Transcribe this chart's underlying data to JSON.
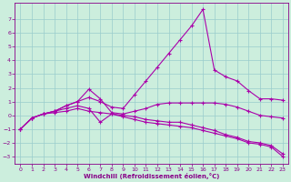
{
  "bg_color": "#cceedd",
  "line_color": "#aa00aa",
  "grid_color": "#99cccc",
  "xlabel": "Windchill (Refroidissement éolien,°C)",
  "xlabel_color": "#880088",
  "tick_color": "#880088",
  "xlim": [
    -0.5,
    23.5
  ],
  "ylim": [
    -3.5,
    8.2
  ],
  "yticks": [
    -3,
    -2,
    -1,
    0,
    1,
    2,
    3,
    4,
    5,
    6,
    7
  ],
  "xticks": [
    0,
    1,
    2,
    3,
    4,
    5,
    6,
    7,
    8,
    9,
    10,
    11,
    12,
    13,
    14,
    15,
    16,
    17,
    18,
    19,
    20,
    21,
    22,
    23
  ],
  "series": [
    {
      "x": [
        0,
        1,
        2,
        3,
        4,
        5,
        6,
        7,
        8,
        9,
        10,
        11,
        12,
        13,
        14,
        15,
        16,
        17,
        18,
        19,
        20,
        21,
        22,
        23
      ],
      "y": [
        -1.0,
        -0.2,
        0.1,
        0.3,
        0.7,
        1.0,
        1.3,
        1.0,
        0.6,
        0.5,
        1.5,
        2.5,
        3.5,
        4.5,
        5.5,
        6.5,
        7.7,
        3.3,
        2.8,
        2.5,
        1.8,
        1.2,
        1.2,
        1.1
      ]
    },
    {
      "x": [
        0,
        1,
        2,
        3,
        4,
        5,
        6,
        7,
        8,
        9,
        10,
        11,
        12,
        13,
        14,
        15,
        16,
        17,
        18,
        19,
        20,
        21,
        22,
        23
      ],
      "y": [
        -1.0,
        -0.2,
        0.1,
        0.3,
        0.7,
        1.0,
        1.9,
        1.2,
        0.2,
        0.1,
        0.3,
        0.5,
        0.8,
        0.9,
        0.9,
        0.9,
        0.9,
        0.9,
        0.8,
        0.6,
        0.3,
        0.0,
        -0.1,
        -0.2
      ]
    },
    {
      "x": [
        0,
        1,
        2,
        3,
        4,
        5,
        6,
        7,
        8,
        9,
        10,
        11,
        12,
        13,
        14,
        15,
        16,
        17,
        18,
        19,
        20,
        21,
        22,
        23
      ],
      "y": [
        -1.0,
        -0.2,
        0.1,
        0.3,
        0.5,
        0.7,
        0.5,
        -0.5,
        0.1,
        0.0,
        -0.1,
        -0.3,
        -0.4,
        -0.5,
        -0.5,
        -0.7,
        -0.9,
        -1.1,
        -1.4,
        -1.6,
        -1.9,
        -2.0,
        -2.2,
        -2.8
      ]
    },
    {
      "x": [
        0,
        1,
        2,
        3,
        4,
        5,
        6,
        7,
        8,
        9,
        10,
        11,
        12,
        13,
        14,
        15,
        16,
        17,
        18,
        19,
        20,
        21,
        22,
        23
      ],
      "y": [
        -1.0,
        -0.2,
        0.1,
        0.2,
        0.3,
        0.5,
        0.3,
        0.2,
        0.1,
        -0.1,
        -0.3,
        -0.5,
        -0.6,
        -0.7,
        -0.8,
        -0.9,
        -1.1,
        -1.3,
        -1.5,
        -1.7,
        -2.0,
        -2.1,
        -2.3,
        -3.0
      ]
    }
  ]
}
